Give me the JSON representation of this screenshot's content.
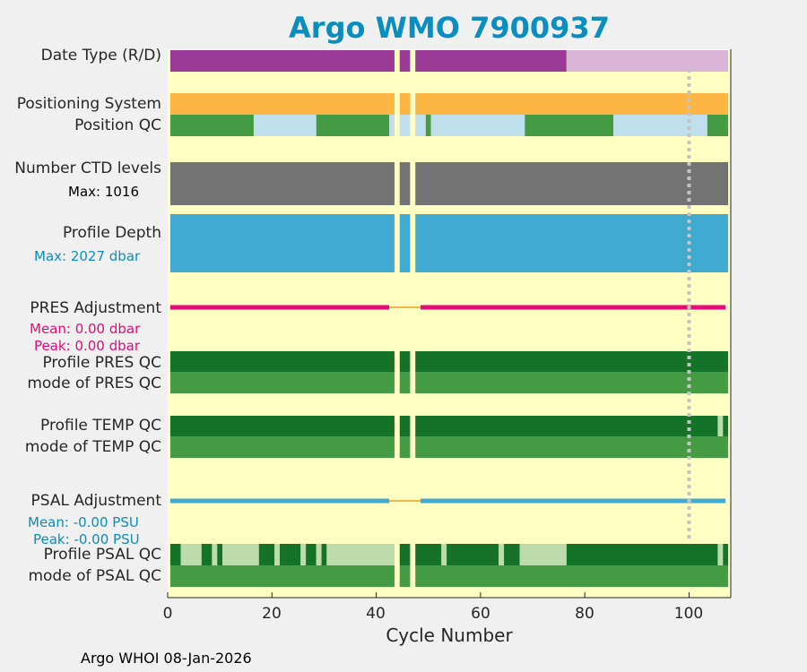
{
  "chart_data": {
    "type": "bar",
    "title": "Argo WMO 7900937",
    "xlabel": "Cycle Number",
    "xlim": [
      0,
      108
    ],
    "xticks": [
      "0",
      "20",
      "40",
      "60",
      "80",
      "100"
    ],
    "marker_cycle": 100,
    "footer": "Argo WHOI 08-Jan-2026",
    "missing_cycles": [
      44,
      47
    ],
    "rows": {
      "date_type": {
        "label": "Date Type (R/D)",
        "segments": [
          {
            "from": 0.5,
            "to": 76.5,
            "value": "R",
            "color": "#9b3a97"
          },
          {
            "from": 76.5,
            "to": 107.5,
            "value": "D",
            "color": "#dbb6d8"
          }
        ]
      },
      "positioning_system": {
        "label": "Positioning System",
        "color": "#fdb544"
      },
      "position_qc": {
        "label": "Position QC",
        "segments": [
          {
            "from": 0.5,
            "to": 16.5,
            "qc": 1,
            "color": "#459a44"
          },
          {
            "from": 16.5,
            "to": 28.5,
            "qc": 8,
            "color": "#c0dfec"
          },
          {
            "from": 28.5,
            "to": 42.5,
            "qc": 1,
            "color": "#459a44"
          },
          {
            "from": 42.5,
            "to": 49.5,
            "qc": 8,
            "color": "#c0dfec"
          },
          {
            "from": 49.5,
            "to": 50.5,
            "qc": 1,
            "color": "#459a44"
          },
          {
            "from": 50.5,
            "to": 68.5,
            "qc": 8,
            "color": "#c0dfec"
          },
          {
            "from": 68.5,
            "to": 85.5,
            "qc": 1,
            "color": "#459a44"
          },
          {
            "from": 85.5,
            "to": 103.5,
            "qc": 8,
            "color": "#c0dfec"
          },
          {
            "from": 103.5,
            "to": 107.5,
            "qc": 1,
            "color": "#459a44"
          }
        ]
      },
      "ctd_levels": {
        "label": "Number CTD levels",
        "max_label": "Max: 1016",
        "color": "#737373"
      },
      "profile_depth": {
        "label": "Profile Depth",
        "max_label": "Max: 2027 dbar",
        "color": "#41aad0"
      },
      "pres_adjustment": {
        "label": "PRES Adjustment",
        "mean": "Mean: 0.00 dbar",
        "peak": "Peak: 0.00 dbar",
        "color": "#e8097a"
      },
      "profile_pres_qc": {
        "label": "Profile PRES QC",
        "color": "#157329"
      },
      "mode_pres_qc": {
        "label": "mode of PRES QC",
        "color": "#459a44"
      },
      "profile_temp_qc": {
        "label": "Profile TEMP QC",
        "color": "#157329",
        "light_cycles": [
          106
        ]
      },
      "mode_temp_qc": {
        "label": "mode of TEMP QC",
        "color": "#459a44"
      },
      "psal_adjustment": {
        "label": "PSAL Adjustment",
        "mean": "Mean: -0.00 PSU",
        "peak": "Peak: -0.00 PSU",
        "color": "#41aad0"
      },
      "profile_psal_qc": {
        "label": "Profile PSAL QC",
        "segments": [
          {
            "from": 0.5,
            "to": 2.5,
            "grade": "A",
            "color": "#157329"
          },
          {
            "from": 2.5,
            "to": 6.5,
            "grade": "B",
            "color": "#bddcad"
          },
          {
            "from": 6.5,
            "to": 8.5,
            "grade": "A",
            "color": "#157329"
          },
          {
            "from": 8.5,
            "to": 9.5,
            "grade": "B",
            "color": "#bddcad"
          },
          {
            "from": 9.5,
            "to": 10.5,
            "grade": "A",
            "color": "#157329"
          },
          {
            "from": 10.5,
            "to": 17.5,
            "grade": "B",
            "color": "#bddcad"
          },
          {
            "from": 17.5,
            "to": 20.5,
            "grade": "A",
            "color": "#157329"
          },
          {
            "from": 20.5,
            "to": 21.5,
            "grade": "B",
            "color": "#bddcad"
          },
          {
            "from": 21.5,
            "to": 25.5,
            "grade": "A",
            "color": "#157329"
          },
          {
            "from": 25.5,
            "to": 26.5,
            "grade": "B",
            "color": "#bddcad"
          },
          {
            "from": 26.5,
            "to": 28.5,
            "grade": "A",
            "color": "#157329"
          },
          {
            "from": 28.5,
            "to": 29.5,
            "grade": "B",
            "color": "#bddcad"
          },
          {
            "from": 29.5,
            "to": 30.5,
            "grade": "A",
            "color": "#157329"
          },
          {
            "from": 30.5,
            "to": 43.5,
            "grade": "B",
            "color": "#bddcad"
          },
          {
            "from": 43.5,
            "to": 52.5,
            "grade": "A",
            "color": "#157329"
          },
          {
            "from": 52.5,
            "to": 53.5,
            "grade": "B",
            "color": "#bddcad"
          },
          {
            "from": 53.5,
            "to": 63.5,
            "grade": "A",
            "color": "#157329"
          },
          {
            "from": 63.5,
            "to": 64.5,
            "grade": "B",
            "color": "#bddcad"
          },
          {
            "from": 64.5,
            "to": 67.5,
            "grade": "A",
            "color": "#157329"
          },
          {
            "from": 67.5,
            "to": 76.5,
            "grade": "B",
            "color": "#bddcad"
          },
          {
            "from": 76.5,
            "to": 105.5,
            "grade": "A",
            "color": "#157329"
          },
          {
            "from": 105.5,
            "to": 106.5,
            "grade": "B",
            "color": "#bddcad"
          },
          {
            "from": 106.5,
            "to": 107.5,
            "grade": "A",
            "color": "#157329"
          }
        ]
      },
      "mode_psal_qc": {
        "label": "mode of PSAL QC",
        "color": "#459a44"
      }
    },
    "colors": {
      "background": "#ffffc4",
      "axes_bg": "#ffffc4",
      "title": "#0a8ec0"
    }
  }
}
